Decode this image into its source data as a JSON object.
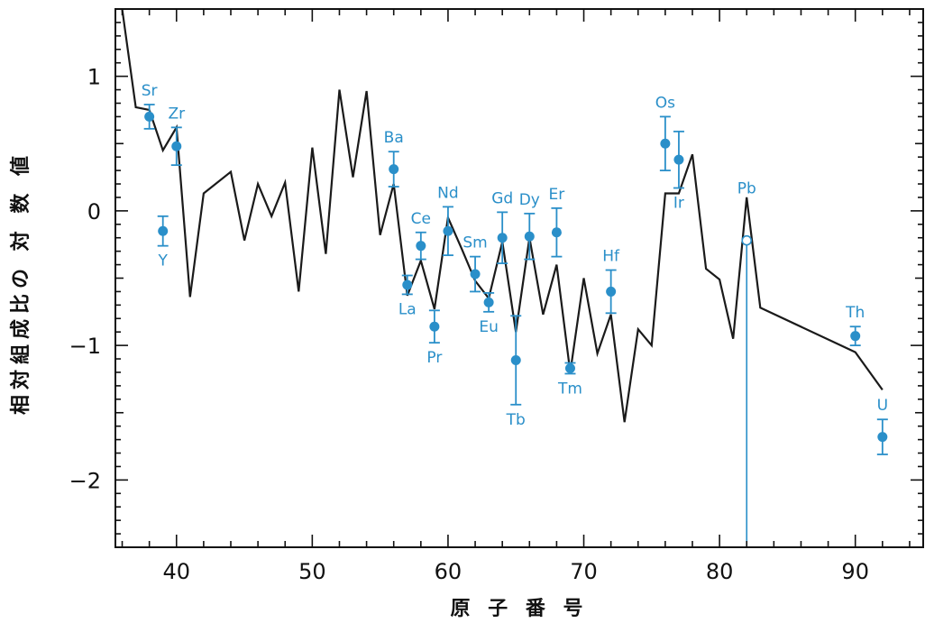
{
  "chart_data": {
    "type": "scatter",
    "xlabel": "原 子 番 号",
    "ylabel": "相対組成比の 対 数 値",
    "xlim": [
      35.5,
      95
    ],
    "ylim": [
      -2.5,
      1.5
    ],
    "xticks": [
      40,
      50,
      60,
      70,
      80,
      90
    ],
    "yticks": [
      1,
      0,
      -1,
      -2
    ],
    "ytick_labels": [
      "1",
      "0",
      "−1",
      "−2"
    ],
    "grid": false,
    "model_line": {
      "x": [
        36,
        37,
        38,
        39,
        40,
        41,
        42,
        44,
        45,
        46,
        47,
        48,
        49,
        50,
        51,
        52,
        53,
        54,
        55,
        56,
        57,
        58,
        59,
        60,
        61,
        62,
        63,
        64,
        65,
        66,
        67,
        68,
        69,
        70,
        71,
        72,
        73,
        74,
        75,
        76,
        77,
        78,
        79,
        80,
        81,
        82,
        83,
        90,
        92
      ],
      "y": [
        1.5,
        0.77,
        0.75,
        0.45,
        0.62,
        -0.64,
        0.13,
        0.29,
        -0.22,
        0.2,
        -0.04,
        0.21,
        -0.6,
        0.47,
        -0.32,
        0.9,
        0.25,
        0.89,
        -0.18,
        0.2,
        -0.63,
        -0.37,
        -0.73,
        -0.05,
        -0.28,
        -0.52,
        -0.65,
        -0.23,
        -0.9,
        -0.2,
        -0.77,
        -0.4,
        -1.2,
        -0.5,
        -1.06,
        -0.77,
        -1.57,
        -0.88,
        -1.0,
        0.13,
        0.13,
        0.42,
        -0.43,
        -0.51,
        -0.95,
        0.1,
        -0.72,
        -1.05,
        -1.33
      ]
    },
    "series": [
      {
        "points": [
          {
            "label": "Sr",
            "x": 38,
            "y": 0.7,
            "err": 0.09,
            "label_pos": "above"
          },
          {
            "label": "Y",
            "x": 39,
            "y": -0.15,
            "err": 0.11,
            "label_pos": "below"
          },
          {
            "label": "Zr",
            "x": 40,
            "y": 0.48,
            "err": 0.14,
            "label_pos": "above"
          },
          {
            "label": "Ba",
            "x": 56,
            "y": 0.31,
            "err": 0.13,
            "label_pos": "above"
          },
          {
            "label": "La",
            "x": 57,
            "y": -0.55,
            "err": 0.07,
            "label_pos": "below"
          },
          {
            "label": "Ce",
            "x": 58,
            "y": -0.26,
            "err": 0.1,
            "label_pos": "above"
          },
          {
            "label": "Pr",
            "x": 59,
            "y": -0.86,
            "err": 0.12,
            "label_pos": "below"
          },
          {
            "label": "Nd",
            "x": 60,
            "y": -0.15,
            "err": 0.18,
            "label_pos": "above"
          },
          {
            "label": "Sm",
            "x": 62,
            "y": -0.47,
            "err": 0.13,
            "label_pos": "above"
          },
          {
            "label": "Eu",
            "x": 63,
            "y": -0.68,
            "err": 0.07,
            "label_pos": "below"
          },
          {
            "label": "Gd",
            "x": 64,
            "y": -0.2,
            "err": 0.19,
            "label_pos": "above"
          },
          {
            "label": "Tb",
            "x": 65,
            "y": -1.11,
            "err": 0.33,
            "label_pos": "below"
          },
          {
            "label": "Dy",
            "x": 66,
            "y": -0.19,
            "err": 0.17,
            "label_pos": "above"
          },
          {
            "label": "Er",
            "x": 68,
            "y": -0.16,
            "err": 0.18,
            "label_pos": "above"
          },
          {
            "label": "Tm",
            "x": 69,
            "y": -1.17,
            "err": 0.04,
            "label_pos": "below"
          },
          {
            "label": "Hf",
            "x": 72,
            "y": -0.6,
            "err": 0.16,
            "label_pos": "above"
          },
          {
            "label": "Os",
            "x": 76,
            "y": 0.5,
            "err": 0.2,
            "label_pos": "above"
          },
          {
            "label": "Ir",
            "x": 77,
            "y": 0.38,
            "err": 0.21,
            "label_pos": "below"
          },
          {
            "label": "Pb",
            "x": 82,
            "y": -0.22,
            "err": 0,
            "label_pos": "above",
            "open": true,
            "upper_limit": true
          },
          {
            "label": "Th",
            "x": 90,
            "y": -0.93,
            "err": 0.07,
            "label_pos": "above"
          },
          {
            "label": "U",
            "x": 92,
            "y": -1.68,
            "err": 0.13,
            "label_pos": "above"
          }
        ]
      }
    ],
    "colors": {
      "points": "#2a8fc9",
      "line": "#1a1a1a",
      "axes": "#111111"
    }
  }
}
